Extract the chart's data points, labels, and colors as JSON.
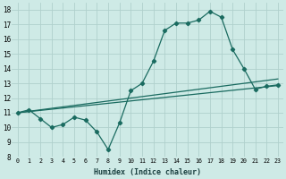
{
  "xlabel": "Humidex (Indice chaleur)",
  "xlim": [
    -0.5,
    23.5
  ],
  "ylim": [
    8,
    18.5
  ],
  "xticks": [
    0,
    1,
    2,
    3,
    4,
    5,
    6,
    7,
    8,
    9,
    10,
    11,
    12,
    13,
    14,
    15,
    16,
    17,
    18,
    19,
    20,
    21,
    22,
    23
  ],
  "yticks": [
    8,
    9,
    10,
    11,
    12,
    13,
    14,
    15,
    16,
    17,
    18
  ],
  "bg_color": "#ceeae6",
  "grid_color": "#b0d0cc",
  "line_color": "#1a6b60",
  "series1_x": [
    0,
    1,
    2,
    3,
    4,
    5,
    6,
    7,
    8,
    9,
    10,
    11,
    12,
    13,
    14,
    15,
    16,
    17,
    18,
    19,
    20,
    21,
    22,
    23
  ],
  "series1_y": [
    11.0,
    11.2,
    10.6,
    10.0,
    10.2,
    10.7,
    10.5,
    9.7,
    8.5,
    10.3,
    12.5,
    13.0,
    14.5,
    16.6,
    17.1,
    17.1,
    17.3,
    17.9,
    17.5,
    15.3,
    14.0,
    12.6,
    12.8,
    12.9
  ],
  "series2_x": [
    0,
    23
  ],
  "series2_y": [
    11.0,
    13.3
  ],
  "series3_x": [
    0,
    23
  ],
  "series3_y": [
    11.0,
    12.85
  ]
}
